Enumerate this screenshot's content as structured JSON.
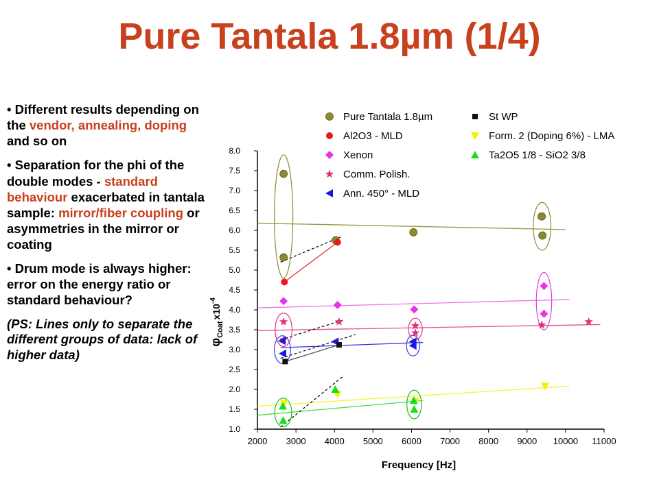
{
  "title": "Pure Tantala 1.8µm (1/4)",
  "bullets": [
    {
      "parts": [
        {
          "text": "• Different results depending on the ",
          "hl": false
        },
        {
          "text": "vendor, annealing, doping",
          "hl": true
        },
        {
          "text": " and so on",
          "hl": false
        }
      ]
    },
    {
      "parts": [
        {
          "text": "• Separation for the phi of the double modes - ",
          "hl": false
        },
        {
          "text": "standard behaviour",
          "hl": true
        },
        {
          "text": " exacerbated in tantala sample: ",
          "hl": false
        },
        {
          "text": "mirror/fiber coupling",
          "hl": true
        },
        {
          "text": " or asymmetries in the mirror or coating",
          "hl": false
        }
      ]
    },
    {
      "parts": [
        {
          "text": "• Drum mode is always higher: error on the energy ratio or standard behaviour?",
          "hl": false
        }
      ]
    }
  ],
  "note": "(PS: Lines only to separate the different groups of data: lack of higher data)",
  "colors": {
    "accent": "#c8401e"
  },
  "chart_data": {
    "type": "scatter",
    "xlabel": "Frequency [Hz]",
    "ylabel_main": "φ",
    "ylabel_sub": "Coat",
    "ylabel_exp": "x10",
    "ylabel_exp_pow": "-4",
    "xlim": [
      2000,
      11000
    ],
    "ylim": [
      1.0,
      8.0
    ],
    "x_ticks": [
      "2000",
      "3000",
      "4000",
      "5000",
      "6000",
      "7000",
      "8000",
      "9000",
      "10000",
      "11000"
    ],
    "y_ticks": [
      "1.0",
      "1.5",
      "2.0",
      "2.5",
      "3.0",
      "3.5",
      "4.0",
      "4.5",
      "5.0",
      "5.5",
      "6.0",
      "6.5",
      "7.0",
      "7.5",
      "8.0"
    ],
    "legend_position": "top",
    "series": [
      {
        "name": "Pure Tantala 1.8µm",
        "marker": "ball",
        "color": "#8b8b2e",
        "points": [
          [
            2680,
            7.42
          ],
          [
            2680,
            5.32
          ],
          [
            4030,
            5.75
          ],
          [
            6050,
            5.95
          ],
          [
            9380,
            6.35
          ],
          [
            9400,
            5.87
          ]
        ]
      },
      {
        "name": "Al2O3 - MLD",
        "marker": "circle",
        "color": "#e8181e",
        "points": [
          [
            2700,
            4.7
          ],
          [
            4080,
            5.7
          ]
        ]
      },
      {
        "name": "Xenon",
        "marker": "diamond",
        "color": "#e834e8",
        "points": [
          [
            2680,
            4.22
          ],
          [
            4080,
            4.12
          ],
          [
            6070,
            4.01
          ],
          [
            9440,
            4.6
          ],
          [
            9440,
            3.9
          ]
        ]
      },
      {
        "name": "Comm. Polish.",
        "marker": "star",
        "color": "#e0327a",
        "points": [
          [
            2680,
            3.7
          ],
          [
            2680,
            3.25
          ],
          [
            4120,
            3.7
          ],
          [
            6100,
            3.6
          ],
          [
            6100,
            3.42
          ],
          [
            9380,
            3.62
          ],
          [
            10600,
            3.7
          ]
        ]
      },
      {
        "name": "Ann. 450° - MLD",
        "marker": "triangle-left",
        "color": "#1818e0",
        "points": [
          [
            2640,
            3.22
          ],
          [
            2660,
            2.9
          ],
          [
            4020,
            3.2
          ],
          [
            6040,
            3.2
          ],
          [
            6040,
            3.1
          ]
        ]
      },
      {
        "name": "St WP",
        "marker": "square",
        "color": "#111111",
        "points": [
          [
            2720,
            2.7
          ],
          [
            4120,
            3.12
          ]
        ]
      },
      {
        "name": "Form. 2 (Doping 6%) - LMA",
        "marker": "triangle-down",
        "color": "#f2f200",
        "points": [
          [
            2690,
            1.65
          ],
          [
            4080,
            1.88
          ],
          [
            6100,
            1.7
          ],
          [
            9470,
            2.08
          ]
        ]
      },
      {
        "name": "Ta2O5 1/8 - SiO2 3/8",
        "marker": "triangle-up",
        "color": "#18e018",
        "points": [
          [
            2660,
            1.58
          ],
          [
            2670,
            1.22
          ],
          [
            4020,
            2.0
          ],
          [
            6060,
            1.72
          ],
          [
            6070,
            1.5
          ]
        ]
      }
    ],
    "trend_lines": [
      {
        "color": "#999944",
        "dash": false,
        "from": [
          2000,
          6.18
        ],
        "to": [
          10000,
          6.02
        ]
      },
      {
        "color": "#f070f0",
        "dash": false,
        "from": [
          2000,
          4.05
        ],
        "to": [
          10100,
          4.26
        ]
      },
      {
        "color": "#e05090",
        "dash": false,
        "from": [
          2000,
          3.48
        ],
        "to": [
          10900,
          3.63
        ]
      },
      {
        "color": "#3838e8",
        "dash": false,
        "from": [
          2600,
          3.05
        ],
        "to": [
          6300,
          3.18
        ]
      },
      {
        "color": "#f4f430",
        "dash": false,
        "from": [
          2000,
          1.58
        ],
        "to": [
          10100,
          2.08
        ]
      },
      {
        "color": "#40e040",
        "dash": false,
        "from": [
          2000,
          1.35
        ],
        "to": [
          6300,
          1.72
        ]
      },
      {
        "color": "#e83030",
        "dash": false,
        "from": [
          2700,
          4.7
        ],
        "to": [
          4080,
          5.7
        ]
      },
      {
        "color": "#555555",
        "dash": false,
        "from": [
          2720,
          2.7
        ],
        "to": [
          4120,
          3.12
        ]
      },
      {
        "color": "#111111",
        "dash": true,
        "from": [
          2600,
          5.2
        ],
        "to": [
          4200,
          5.85
        ]
      },
      {
        "color": "#111111",
        "dash": true,
        "from": [
          2600,
          3.25
        ],
        "to": [
          4250,
          3.75
        ]
      },
      {
        "color": "#111111",
        "dash": true,
        "from": [
          2600,
          2.78
        ],
        "to": [
          4550,
          3.38
        ]
      },
      {
        "color": "#111111",
        "dash": true,
        "from": [
          2600,
          1.05
        ],
        "to": [
          4250,
          2.35
        ]
      }
    ],
    "group_ellipses": [
      {
        "color": "#8b8b2e",
        "cx": 2680,
        "cy": 6.35,
        "rx": 240,
        "ry": 1.55
      },
      {
        "color": "#8b8b2e",
        "cx": 9390,
        "cy": 6.1,
        "rx": 230,
        "ry": 0.6
      },
      {
        "color": "#e834e8",
        "cx": 9440,
        "cy": 4.22,
        "rx": 200,
        "ry": 0.72
      },
      {
        "color": "#e0327a",
        "cx": 2680,
        "cy": 3.5,
        "rx": 220,
        "ry": 0.42
      },
      {
        "color": "#e0327a",
        "cx": 6100,
        "cy": 3.52,
        "rx": 180,
        "ry": 0.27
      },
      {
        "color": "#3838e8",
        "cx": 2650,
        "cy": 3.0,
        "rx": 210,
        "ry": 0.35
      },
      {
        "color": "#3838e8",
        "cx": 6040,
        "cy": 3.1,
        "rx": 170,
        "ry": 0.26
      },
      {
        "color": "#18c018",
        "cx": 2670,
        "cy": 1.42,
        "rx": 220,
        "ry": 0.36
      },
      {
        "color": "#18c018",
        "cx": 6070,
        "cy": 1.62,
        "rx": 190,
        "ry": 0.36
      }
    ]
  }
}
